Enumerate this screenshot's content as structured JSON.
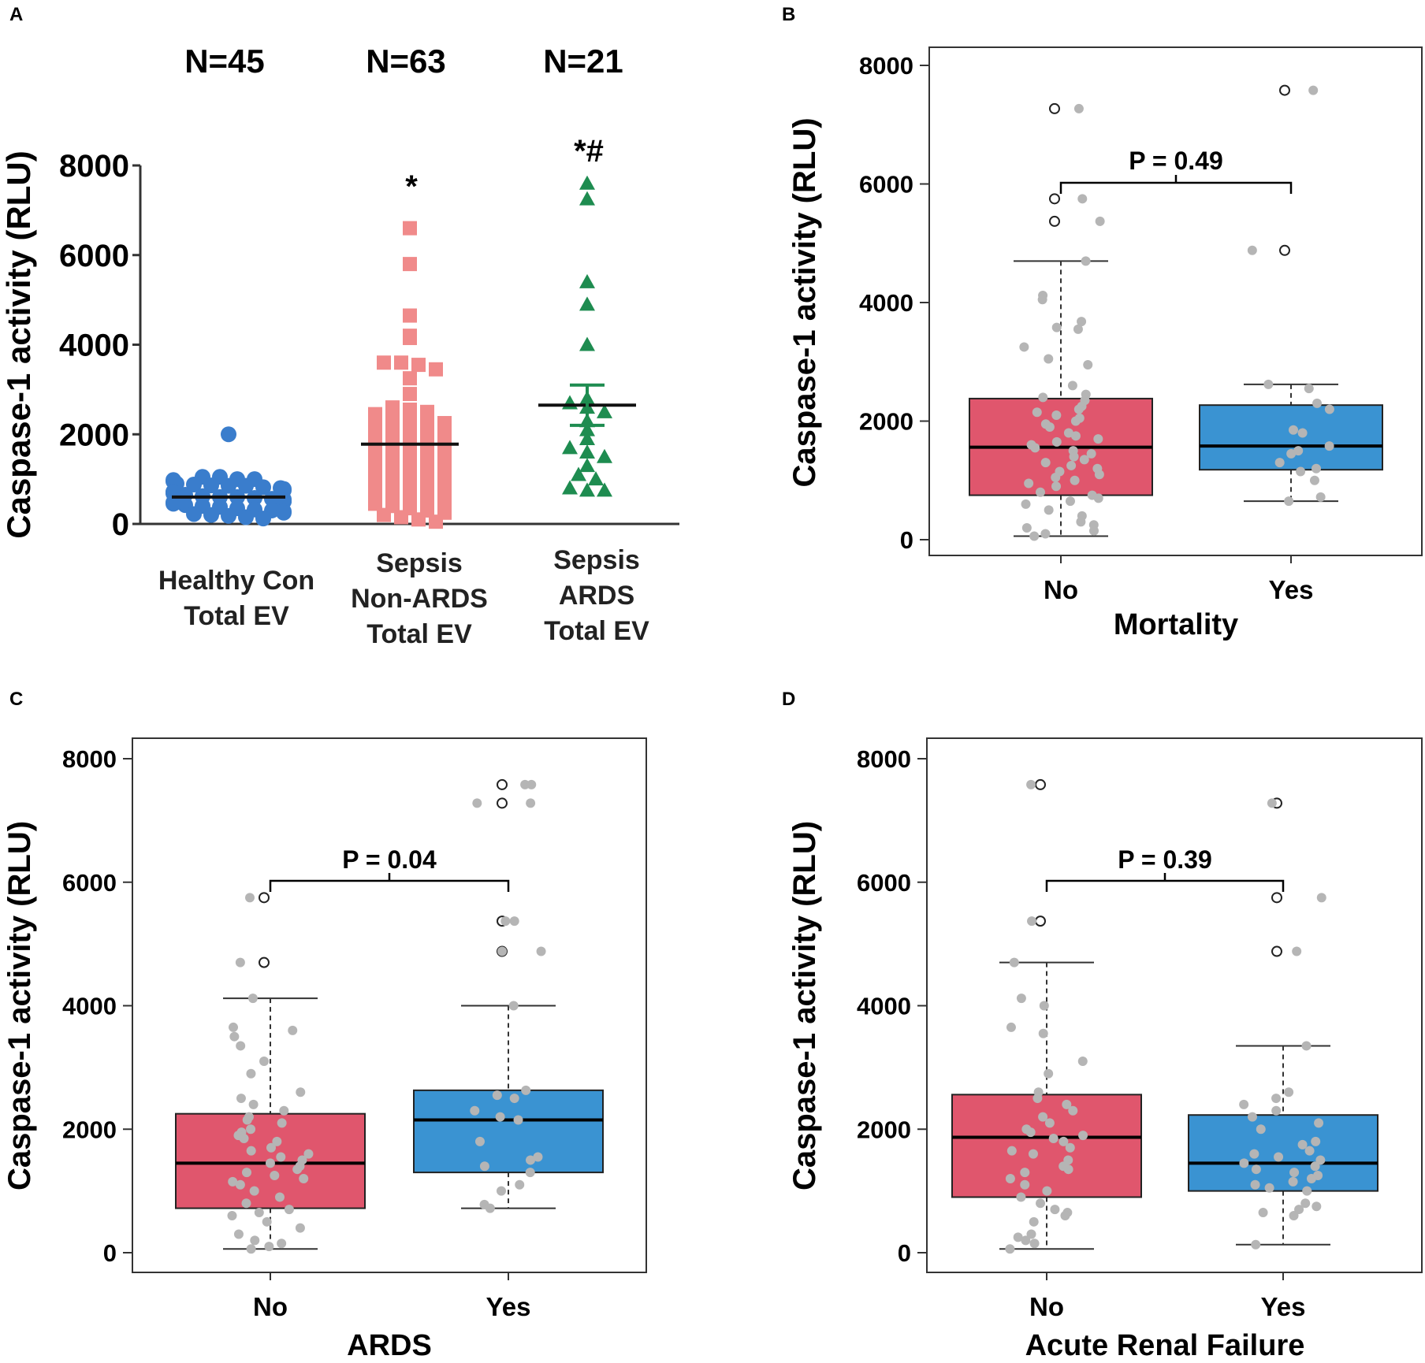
{
  "chart_data": [
    {
      "panel": "A",
      "type": "scatter",
      "ylabel": "Caspase-1 activity (RLU)",
      "ylim": [
        0,
        8000
      ],
      "yticks": [
        0,
        2000,
        4000,
        6000,
        8000
      ],
      "groups": [
        {
          "label_lines": [
            "Healthy Con",
            "Total EV"
          ],
          "n_label": "N=45",
          "sig": "",
          "color": "#3a7dcc",
          "marker": "circle",
          "mean": 600,
          "sem": 0,
          "values": [
            2000,
            1050,
            1050,
            1000,
            1000,
            980,
            950,
            900,
            880,
            860,
            850,
            850,
            820,
            800,
            780,
            750,
            720,
            700,
            700,
            680,
            650,
            620,
            600,
            600,
            580,
            560,
            550,
            520,
            500,
            500,
            480,
            450,
            420,
            400,
            380,
            350,
            320,
            300,
            280,
            250,
            220,
            200,
            180,
            150,
            120
          ]
        },
        {
          "label_lines": [
            "Sepsis",
            "Non-ARDS",
            "Total EV"
          ],
          "n_label": "N=63",
          "sig": "*",
          "color": "#f08a8a",
          "marker": "square",
          "mean": 1780,
          "sem": 0,
          "values": [
            6600,
            5800,
            4650,
            4200,
            4150,
            3600,
            3600,
            3550,
            3450,
            3250,
            2900,
            2600,
            2550,
            2500,
            2450,
            2400,
            2350,
            2300,
            2250,
            2200,
            2150,
            2100,
            2050,
            2000,
            1950,
            1900,
            1850,
            1800,
            1750,
            1700,
            1650,
            1600,
            1550,
            1500,
            1450,
            1400,
            1350,
            1300,
            1250,
            1200,
            1150,
            1100,
            1050,
            1000,
            950,
            900,
            850,
            800,
            750,
            700,
            650,
            600,
            550,
            500,
            450,
            400,
            350,
            300,
            250,
            200,
            150,
            100,
            50
          ]
        },
        {
          "label_lines": [
            "Sepsis",
            "ARDS",
            "Total EV"
          ],
          "n_label": "N=21",
          "sig": "*#",
          "color": "#1e8c50",
          "marker": "triangle",
          "mean": 2650,
          "sem": 450,
          "values": [
            7600,
            7250,
            5400,
            4900,
            4000,
            2800,
            2700,
            2600,
            2500,
            2300,
            2100,
            1900,
            1700,
            1600,
            1500,
            1300,
            1100,
            1000,
            800,
            750,
            750
          ]
        }
      ]
    },
    {
      "panel": "B",
      "type": "box",
      "ylabel": "Caspase-1 activity (RLU)",
      "xlabel": "Mortality",
      "ylim": [
        0,
        8000
      ],
      "yticks": [
        0,
        2000,
        4000,
        6000,
        8000
      ],
      "p_label": "P = 0.49",
      "groups": [
        {
          "category": "No",
          "color": "#e0566d",
          "q1": 750,
          "median": 1560,
          "q3": 2380,
          "whisker_low": 60,
          "whisker_high": 4700,
          "outliers": [
            7270,
            5750,
            5370
          ],
          "points": [
            7270,
            5750,
            5370,
            4700,
            4120,
            4050,
            3680,
            3580,
            3550,
            3250,
            3050,
            2950,
            2600,
            2450,
            2400,
            2350,
            2250,
            2200,
            2150,
            2100,
            2050,
            2000,
            1950,
            1900,
            1800,
            1750,
            1700,
            1650,
            1600,
            1550,
            1500,
            1450,
            1400,
            1350,
            1300,
            1250,
            1200,
            1150,
            1100,
            1050,
            1000,
            950,
            900,
            800,
            750,
            700,
            650,
            600,
            500,
            400,
            300,
            250,
            200,
            150,
            100,
            60
          ]
        },
        {
          "category": "Yes",
          "color": "#3a93d2",
          "q1": 1180,
          "median": 1580,
          "q3": 2270,
          "whisker_low": 650,
          "whisker_high": 2620,
          "outliers": [
            7580,
            4880
          ],
          "points": [
            7580,
            4880,
            2620,
            2550,
            2300,
            2200,
            1850,
            1800,
            1580,
            1500,
            1450,
            1300,
            1200,
            1150,
            1000,
            720,
            650
          ]
        }
      ]
    },
    {
      "panel": "C",
      "type": "box",
      "ylabel": "Caspase-1 activity (RLU)",
      "xlabel": "ARDS",
      "ylim": [
        0,
        8000
      ],
      "yticks": [
        0,
        2000,
        4000,
        6000,
        8000
      ],
      "p_label": "P = 0.04",
      "groups": [
        {
          "category": "No",
          "color": "#e0566d",
          "q1": 720,
          "median": 1450,
          "q3": 2250,
          "whisker_low": 60,
          "whisker_high": 4120,
          "outliers": [
            5750,
            4700
          ],
          "points": [
            5750,
            4700,
            4120,
            3650,
            3600,
            3500,
            3350,
            3100,
            2900,
            2600,
            2500,
            2400,
            2300,
            2200,
            2150,
            2100,
            2000,
            1950,
            1900,
            1850,
            1800,
            1700,
            1650,
            1600,
            1550,
            1500,
            1450,
            1400,
            1350,
            1300,
            1250,
            1200,
            1150,
            1100,
            1000,
            900,
            800,
            700,
            650,
            600,
            500,
            400,
            300,
            200,
            150,
            100,
            60
          ]
        },
        {
          "category": "Yes",
          "color": "#3a93d2",
          "q1": 1300,
          "median": 2150,
          "q3": 2630,
          "whisker_low": 720,
          "whisker_high": 4000,
          "outliers": [
            7580,
            7280,
            5370,
            4880
          ],
          "points": [
            7580,
            7580,
            7280,
            7280,
            5370,
            5370,
            4880,
            4880,
            4000,
            2630,
            2550,
            2500,
            2300,
            2200,
            2150,
            1800,
            1550,
            1500,
            1400,
            1300,
            1100,
            1000,
            780,
            720
          ]
        }
      ]
    },
    {
      "panel": "D",
      "type": "box",
      "ylabel": "Caspase-1 activity (RLU)",
      "xlabel": "Acute Renal Failure",
      "ylim": [
        0,
        8000
      ],
      "yticks": [
        0,
        2000,
        4000,
        6000,
        8000
      ],
      "p_label": "P = 0.39",
      "groups": [
        {
          "category": "No",
          "color": "#e0566d",
          "q1": 900,
          "median": 1870,
          "q3": 2560,
          "whisker_low": 60,
          "whisker_high": 4700,
          "outliers": [
            7580,
            5370
          ],
          "points": [
            7580,
            5370,
            4700,
            4120,
            4000,
            3650,
            3550,
            3100,
            2900,
            2600,
            2500,
            2400,
            2300,
            2200,
            2100,
            2000,
            1950,
            1900,
            1850,
            1800,
            1700,
            1650,
            1600,
            1500,
            1400,
            1350,
            1300,
            1200,
            1100,
            1000,
            900,
            800,
            700,
            650,
            600,
            500,
            300,
            250,
            200,
            150,
            60
          ]
        },
        {
          "category": "Yes",
          "color": "#3a93d2",
          "q1": 1000,
          "median": 1450,
          "q3": 2230,
          "whisker_low": 130,
          "whisker_high": 3350,
          "outliers": [
            7280,
            5750,
            4880
          ],
          "points": [
            7280,
            5750,
            4880,
            3350,
            2600,
            2500,
            2400,
            2300,
            2200,
            2100,
            2000,
            1800,
            1750,
            1650,
            1600,
            1550,
            1500,
            1450,
            1400,
            1350,
            1300,
            1250,
            1200,
            1150,
            1100,
            1050,
            1000,
            800,
            750,
            700,
            650,
            600,
            130
          ]
        }
      ]
    }
  ]
}
